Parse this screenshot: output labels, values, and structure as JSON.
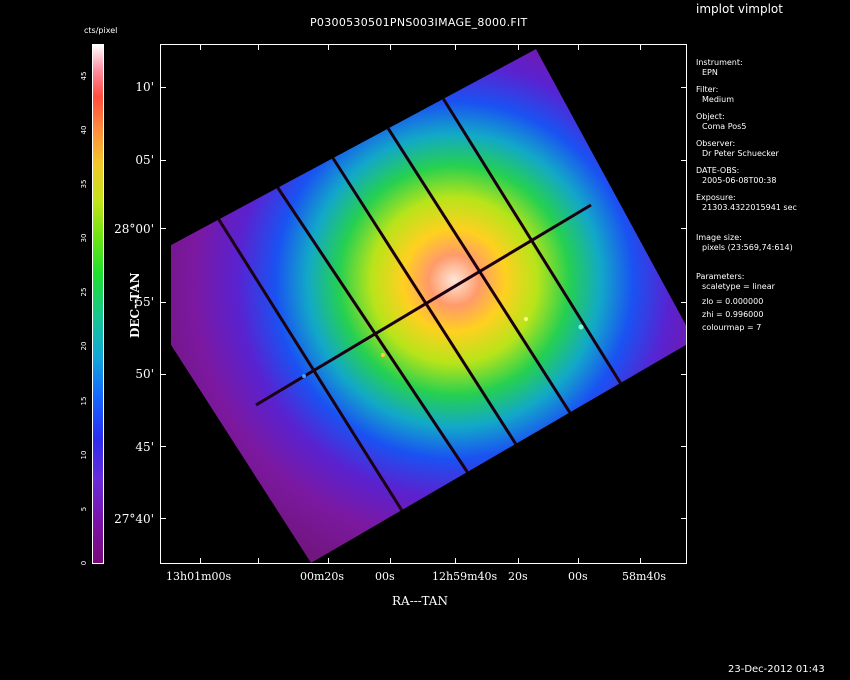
{
  "window": {
    "app_title": "implot vimplot",
    "timestamp": "23-Dec-2012 01:43"
  },
  "plot": {
    "title": "P0300530501PNS003IMAGE_8000.FIT",
    "xlabel": "RA---TAN",
    "ylabel": "DEC--TAN",
    "yticks": [
      "10'",
      "05'",
      "28°00'",
      "55'",
      "50'",
      "45'",
      "27°40'"
    ],
    "xticks": [
      "13h01m00s",
      "00m20s",
      "00s",
      "12h59m40s",
      "20s",
      "00s",
      "58m40s"
    ],
    "image_description": "rotated square detector mosaic with cluster emission"
  },
  "colorbar": {
    "title": "cts/pixel",
    "ticks": [
      "0",
      "5",
      "10",
      "15",
      "20",
      "25",
      "30",
      "35",
      "40",
      "45"
    ],
    "max": 48
  },
  "info_panel": [
    {
      "key": "Instrument:",
      "value": "EPN"
    },
    {
      "key": "Filter:",
      "value": "Medium"
    },
    {
      "key": "Object:",
      "value": "Coma Pos5"
    },
    {
      "key": "Observer:",
      "value": "Dr Peter Schuecker"
    },
    {
      "key": "DATE-OBS:",
      "value": "2005-06-08T00:38"
    },
    {
      "key": "Exposure:",
      "value": "21303.4322015941 sec"
    },
    {
      "key": "Image size:",
      "value": "pixels (23:569,74:614)"
    },
    {
      "key": "Parameters:",
      "value": "scaletype = linear"
    },
    {
      "key": "",
      "value": "zlo = 0.000000"
    },
    {
      "key": "",
      "value": "zhi = 0.996000"
    },
    {
      "key": "",
      "value": "colourmap =   7"
    }
  ],
  "colors": {
    "background": "#000000",
    "frame": "#ffffff",
    "detector_bg": "#7a1a80",
    "core": "#ffd0b0"
  }
}
